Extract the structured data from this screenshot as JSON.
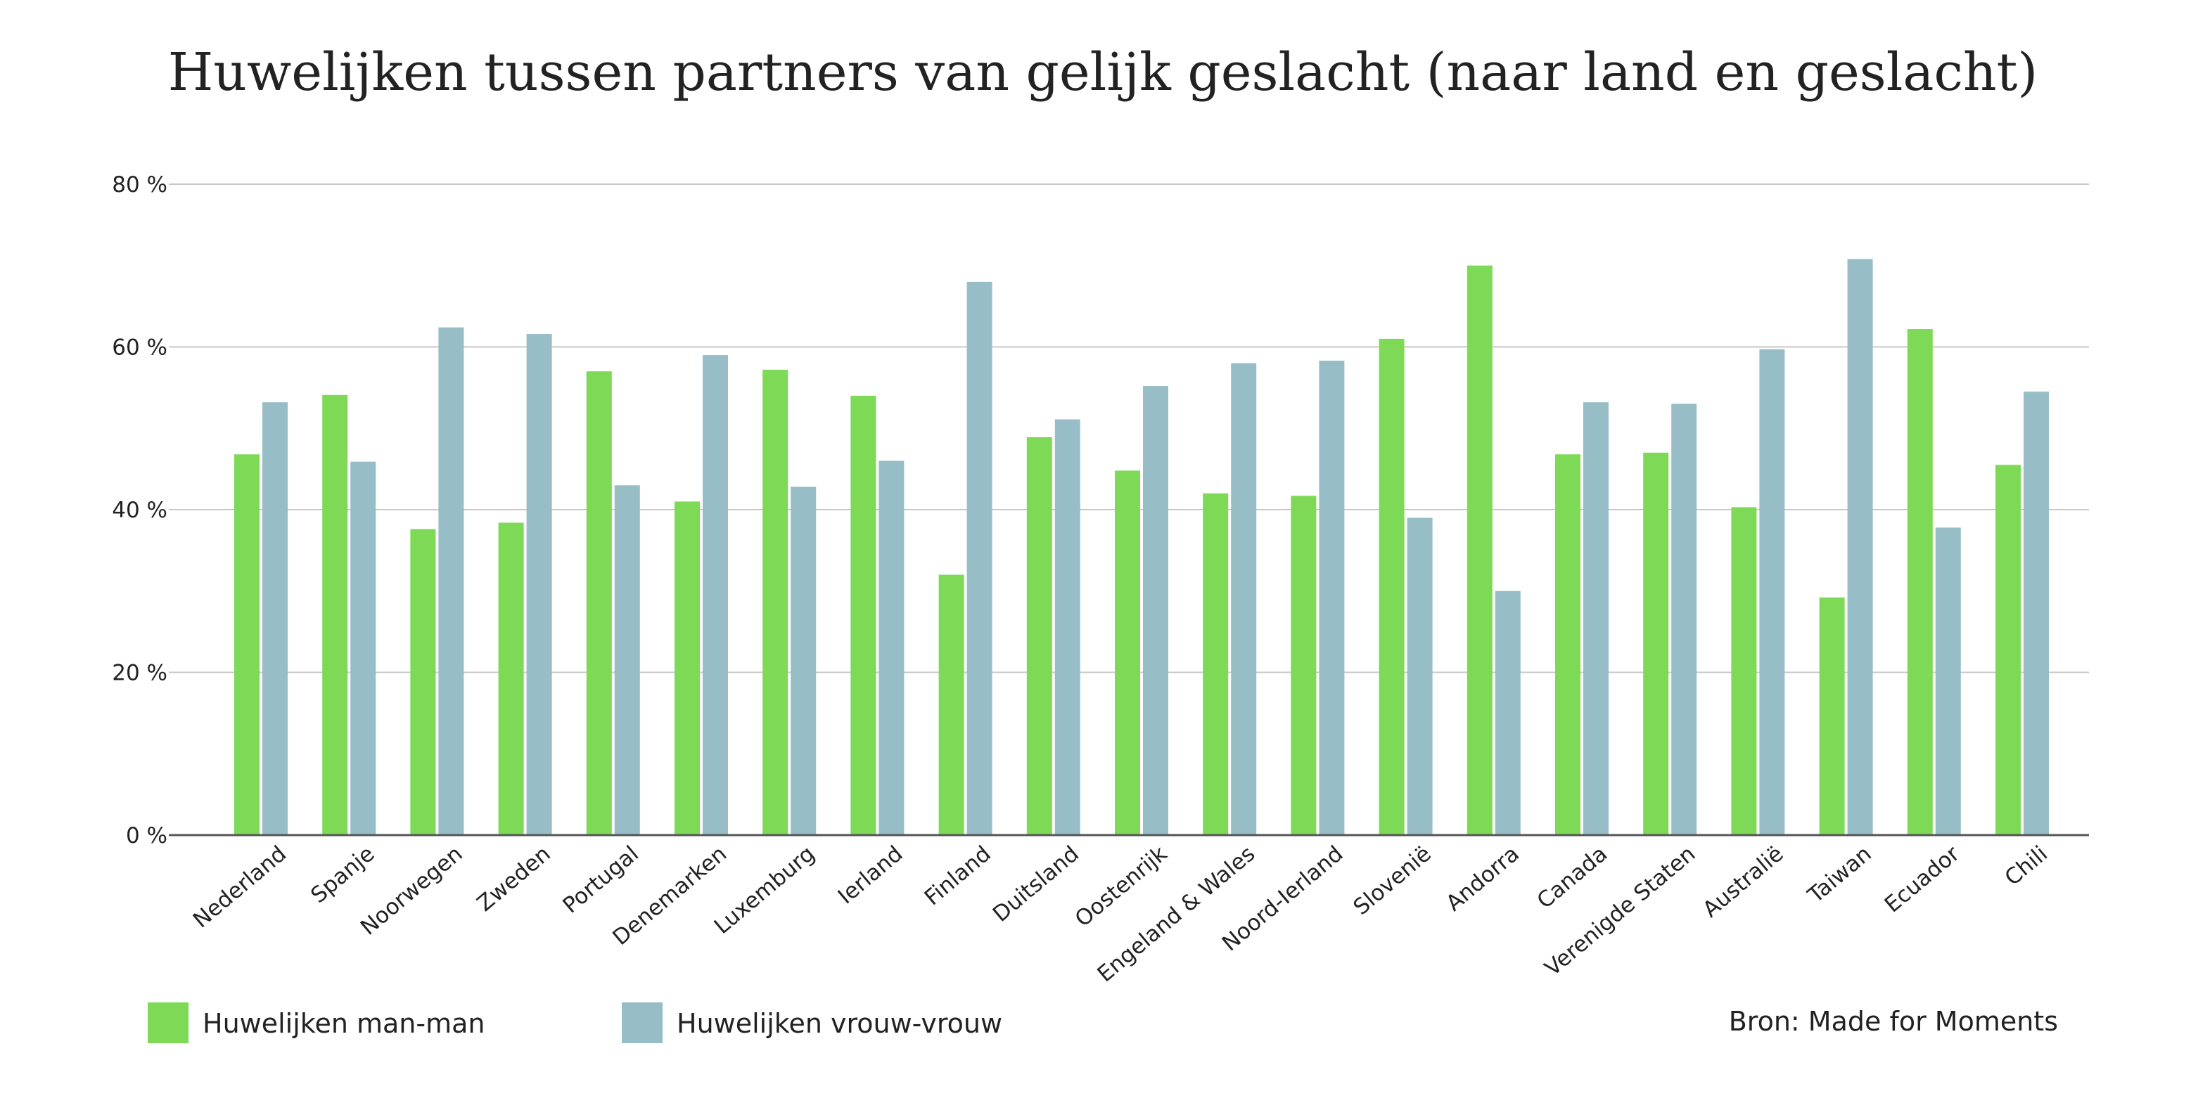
{
  "chart_data": {
    "type": "bar",
    "title": "Huwelijken tussen partners van gelijk geslacht (naar land en geslacht)",
    "categories": [
      "Nederland",
      "Spanje",
      "Noorwegen",
      "Zweden",
      "Portugal",
      "Denemarken",
      "Luxemburg",
      "Ierland",
      "Finland",
      "Duitsland",
      "Oostenrijk",
      "Engeland & Wales",
      "Noord-Ierland",
      "Slovenië",
      "Andorra",
      "Canada",
      "Verenigde Staten",
      "Australië",
      "Taiwan",
      "Ecuador",
      "Chili"
    ],
    "series": [
      {
        "name": "Huwelijken man-man",
        "color": "#7ed957",
        "values": [
          46.8,
          54.1,
          37.6,
          38.4,
          57.0,
          41.0,
          57.2,
          54.0,
          32.0,
          48.9,
          44.8,
          42.0,
          41.7,
          61.0,
          70.0,
          46.8,
          47.0,
          40.3,
          29.2,
          62.2,
          45.5
        ]
      },
      {
        "name": "Huwelijken vrouw-vrouw",
        "color": "#97bec6",
        "values": [
          53.2,
          45.9,
          62.4,
          61.6,
          43.0,
          59.0,
          42.8,
          46.0,
          68.0,
          51.1,
          55.2,
          58.0,
          58.3,
          39.0,
          30.0,
          53.2,
          53.0,
          59.7,
          70.8,
          37.8,
          54.5
        ]
      }
    ],
    "y_ticks": [
      "0 %",
      "20 %",
      "40 %",
      "60 %",
      "80 %"
    ],
    "ylim": [
      0,
      80
    ],
    "grid": true,
    "legend_position": "bottom-left",
    "source": "Bron: Made for Moments"
  }
}
